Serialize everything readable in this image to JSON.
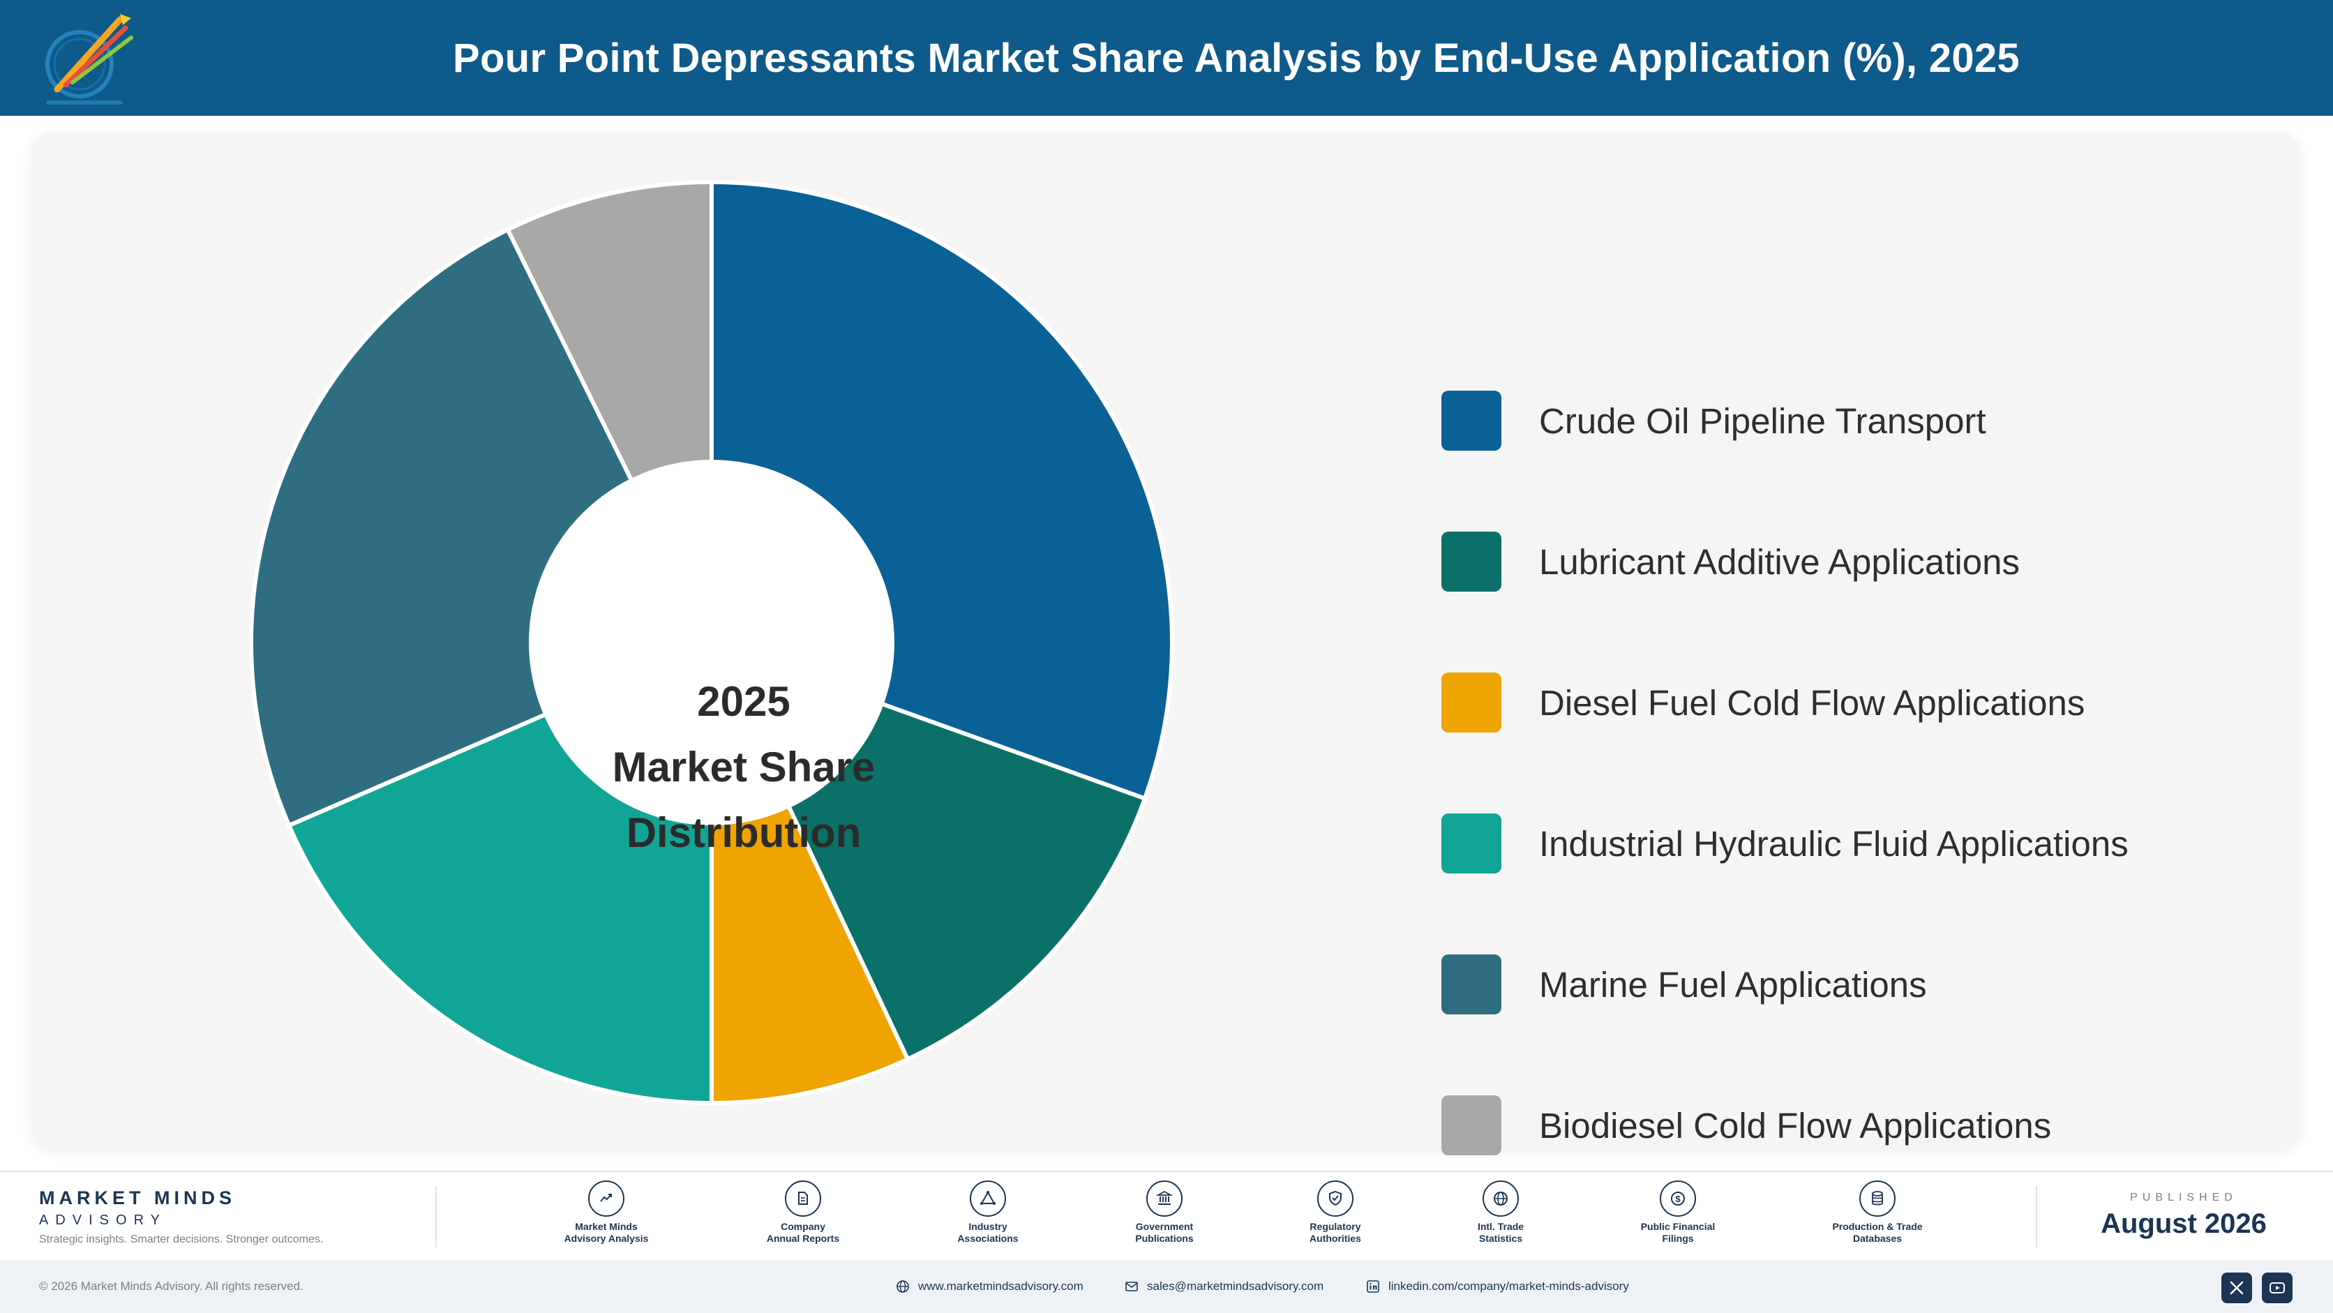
{
  "header": {
    "title": "Pour Point Depressants Market Share Analysis by End-Use Application (%), 2025"
  },
  "chart_data": {
    "type": "pie",
    "title": "Pour Point Depressants Market Share Analysis by End-Use Application (%), 2025",
    "center_label": [
      "2025",
      "Market Share",
      "Distribution"
    ],
    "legend_position": "right",
    "categories": [
      "Crude Oil Pipeline Transport",
      "Lubricant Additive Applications",
      "Diesel Fuel Cold Flow Applications",
      "Industrial Hydraulic Fluid Applications",
      "Marine Fuel Applications",
      "Biodiesel Cold Flow Applications"
    ],
    "values": [
      30.5,
      12.5,
      7.0,
      18.5,
      24.2,
      7.3
    ],
    "colors": [
      "#0a6196",
      "#0b7168",
      "#f0a402",
      "#11a595",
      "#2f6e81",
      "#a8a8a8"
    ]
  },
  "footer": {
    "brand_name": "MARKET MINDS",
    "brand_sub": "ADVISORY",
    "tagline": "Strategic insights. Smarter decisions. Stronger outcomes.",
    "sources": [
      {
        "label": "Market Minds\nAdvisory Analysis",
        "icon": "trend-chart-icon"
      },
      {
        "label": "Company\nAnnual Reports",
        "icon": "document-icon"
      },
      {
        "label": "Industry\nAssociations",
        "icon": "network-icon"
      },
      {
        "label": "Government\nPublications",
        "icon": "government-building-icon"
      },
      {
        "label": "Regulatory\nAuthorities",
        "icon": "shield-check-icon"
      },
      {
        "label": "Intl. Trade\nStatistics",
        "icon": "globe-icon"
      },
      {
        "label": "Public Financial\nFilings",
        "icon": "dollar-coin-icon"
      },
      {
        "label": "Production & Trade\nDatabases",
        "icon": "database-icon"
      }
    ],
    "published_label": "PUBLISHED",
    "published_date": "August 2026",
    "copyright": "© 2026 Market Minds Advisory. All rights reserved.",
    "website": "www.marketmindsadvisory.com",
    "email": "sales@marketmindsadvisory.com",
    "linkedin": "linkedin.com/company/market-minds-advisory"
  }
}
